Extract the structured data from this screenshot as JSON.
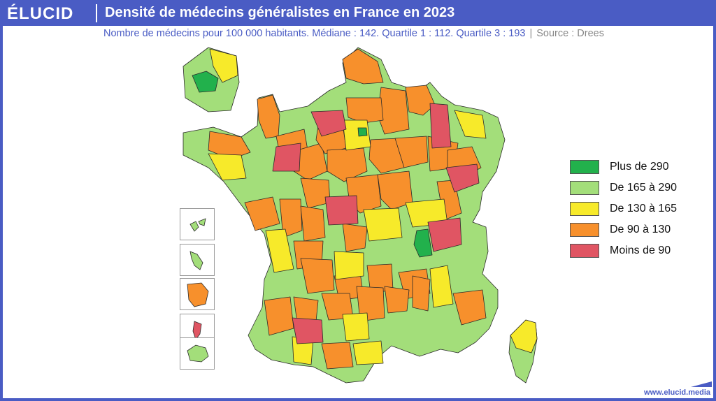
{
  "brand": "ÉLUCID",
  "title": "Densité de médecins généralistes en France en 2023",
  "subtitle": {
    "text": "Nombre de médecins pour 100 000 habitants. Médiane  : 142. Quartile 1 : 112. Quartile 3 : 193",
    "source": "Source : Drees"
  },
  "legend": [
    {
      "label": "Plus de 290",
      "color": "#22b14c"
    },
    {
      "label": "De 165 à 290",
      "color": "#a3de7a"
    },
    {
      "label": "De 130 à 165",
      "color": "#f7ea2a"
    },
    {
      "label": "De 90 à 130",
      "color": "#f7902c"
    },
    {
      "label": "Moins de 90",
      "color": "#e05563"
    }
  ],
  "footer": "www.elucid.media"
}
